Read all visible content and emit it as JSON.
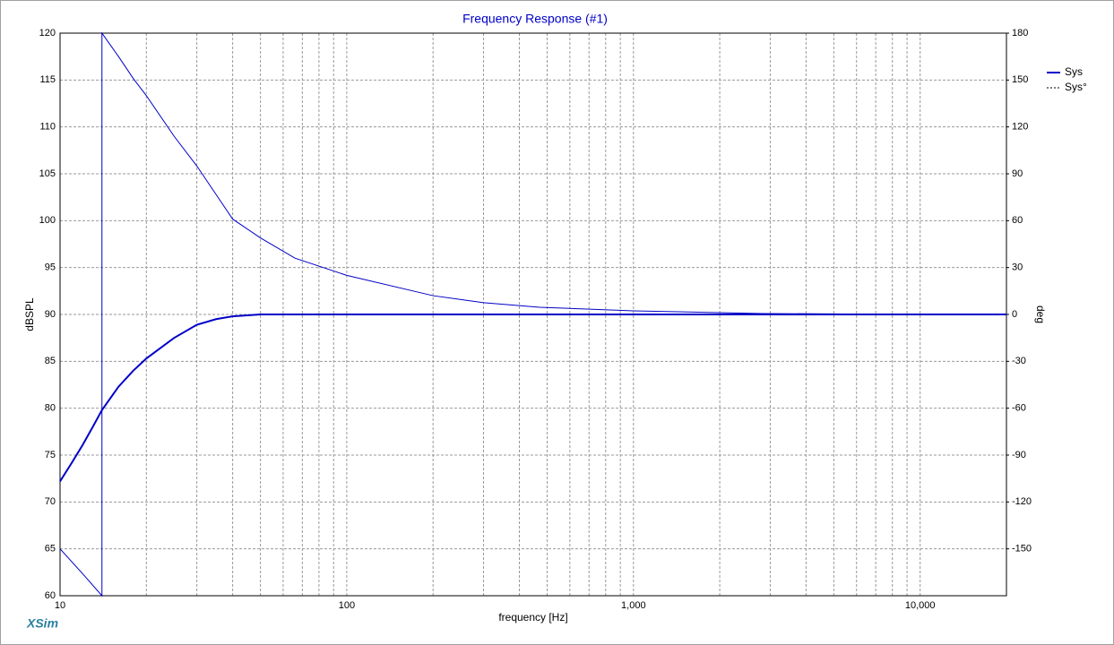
{
  "chart_data": {
    "type": "line",
    "title": "Frequency Response (#1)",
    "xlabel": "frequency [Hz]",
    "ylabel": "dBSPL",
    "y2label": "deg",
    "watermark": "XSim",
    "xscale": "log",
    "xlim": [
      10,
      20000
    ],
    "xticks": [
      10,
      100,
      {
        "value": 1000,
        "label": "1,000"
      },
      {
        "value": 10000,
        "label": "10,000"
      }
    ],
    "xminor": [
      20,
      30,
      40,
      50,
      60,
      70,
      80,
      90,
      200,
      300,
      400,
      500,
      600,
      700,
      800,
      900,
      2000,
      3000,
      4000,
      5000,
      6000,
      7000,
      8000,
      9000
    ],
    "ylim": [
      60,
      120
    ],
    "yticks": [
      60,
      65,
      70,
      75,
      80,
      85,
      90,
      95,
      100,
      105,
      110,
      115,
      120
    ],
    "y2lim": [
      -180,
      180
    ],
    "y2ticks": [
      -150,
      -120,
      -90,
      -60,
      -30,
      0,
      30,
      60,
      90,
      120,
      150,
      180
    ],
    "grid": true,
    "legend": "upper right",
    "series": [
      {
        "name": "Sys",
        "color": "#0000c8",
        "style": "solid",
        "x": [
          10,
          11,
          12,
          13,
          14,
          16,
          18,
          20,
          25,
          30,
          35,
          40,
          50,
          100,
          1000,
          10000,
          20000
        ],
        "values": [
          72.2,
          74.2,
          76.1,
          78.0,
          79.8,
          82.3,
          84.0,
          85.3,
          87.5,
          88.9,
          89.5,
          89.8,
          90,
          90,
          90,
          90,
          90
        ]
      },
      {
        "name": "Sys°",
        "color": "#0000c8",
        "style": "dashed",
        "axis": "y2",
        "x": [
          10,
          12,
          14,
          14,
          16,
          18,
          20,
          25,
          30,
          40,
          50,
          66,
          100,
          200,
          300,
          470,
          1000,
          2800,
          10000,
          20000
        ],
        "values": [
          -150,
          -166,
          -180,
          180,
          165,
          151,
          140,
          114,
          95,
          61,
          49,
          36,
          25,
          12,
          7.5,
          4.6,
          2.3,
          0.6,
          0,
          0
        ]
      }
    ]
  }
}
